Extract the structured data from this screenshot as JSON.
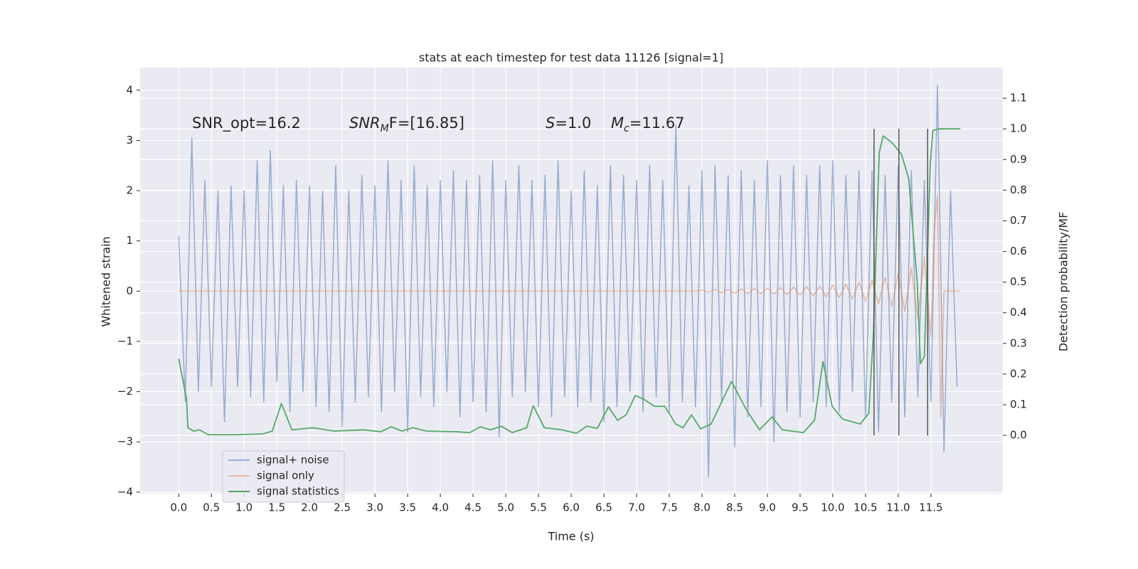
{
  "chart_data": {
    "type": "line",
    "title": "stats at each timestep for test data 11126 [signal=1]",
    "x_label": "Time (s)",
    "y_label": "Whitened strain",
    "y2_label": "Detection probability/MF",
    "background": "#eaeaf2",
    "grid": true,
    "legend": "lower left",
    "xlim": [
      -0.59,
      12.6
    ],
    "ylim": [
      -4.03,
      4.45
    ],
    "y2lim": [
      -0.19,
      1.2
    ],
    "xticks": [
      {
        "value": 0,
        "label": "0.0"
      },
      {
        "value": 0.5,
        "label": "0.5"
      },
      {
        "value": 1,
        "label": "1.0"
      },
      {
        "value": 1.5,
        "label": "1.5"
      },
      {
        "value": 2,
        "label": "2.0"
      },
      {
        "value": 2.5,
        "label": "2.5"
      },
      {
        "value": 3,
        "label": "3.0"
      },
      {
        "value": 3.5,
        "label": "3.5"
      },
      {
        "value": 4,
        "label": "4.0"
      },
      {
        "value": 4.5,
        "label": "4.5"
      },
      {
        "value": 5,
        "label": "5.0"
      },
      {
        "value": 5.5,
        "label": "5.5"
      },
      {
        "value": 6,
        "label": "6.0"
      },
      {
        "value": 6.5,
        "label": "6.5"
      },
      {
        "value": 7,
        "label": "7.0"
      },
      {
        "value": 7.5,
        "label": "7.5"
      },
      {
        "value": 8,
        "label": "8.0"
      },
      {
        "value": 8.5,
        "label": "8.5"
      },
      {
        "value": 9,
        "label": "9.0"
      },
      {
        "value": 9.5,
        "label": "9.5"
      },
      {
        "value": 10,
        "label": "10.0"
      },
      {
        "value": 10.5,
        "label": "10.5"
      },
      {
        "value": 11,
        "label": "11.0"
      },
      {
        "value": 11.5,
        "label": "11.5"
      }
    ],
    "yticks": [
      {
        "value": -4,
        "label": "−4"
      },
      {
        "value": -3,
        "label": "−3"
      },
      {
        "value": -2,
        "label": "−2"
      },
      {
        "value": -1,
        "label": "−1"
      },
      0,
      1,
      2,
      3,
      4
    ],
    "y2ticks": [
      {
        "value": 0,
        "label": "0.0"
      },
      {
        "value": 0.1,
        "label": "0.1"
      },
      {
        "value": 0.2,
        "label": "0.2"
      },
      {
        "value": 0.3,
        "label": "0.3"
      },
      {
        "value": 0.4,
        "label": "0.4"
      },
      {
        "value": 0.5,
        "label": "0.5"
      },
      {
        "value": 0.6,
        "label": "0.6"
      },
      {
        "value": 0.7,
        "label": "0.7"
      },
      {
        "value": 0.8,
        "label": "0.8"
      },
      {
        "value": 0.9,
        "label": "0.9"
      },
      {
        "value": 1,
        "label": "1.0"
      },
      {
        "value": 1.1,
        "label": "1.1"
      }
    ],
    "annotations": [
      {
        "parts": [
          {
            "text": "SNR_opt=16.2",
            "style": "normal"
          }
        ]
      },
      {
        "parts": [
          {
            "text": "SNR",
            "style": "italic"
          },
          {
            "text": "M",
            "style": "italic-sub"
          },
          {
            "text": "F=[16.85]",
            "style": "mixed"
          }
        ]
      },
      {
        "parts": [
          {
            "text": "S",
            "style": "italic"
          },
          {
            "text": "=1.0",
            "style": "normal"
          }
        ]
      },
      {
        "parts": [
          {
            "text": "M",
            "style": "italic"
          },
          {
            "text": "c",
            "style": "italic-sub"
          },
          {
            "text": "=11.67",
            "style": "normal"
          }
        ]
      }
    ],
    "vlines": {
      "x": [
        10.63,
        11.01,
        11.45
      ],
      "ymin": 0,
      "ymax": 1,
      "axis": "y2",
      "color": "#555555"
    },
    "series": [
      {
        "name": "signal+ noise",
        "color": "#4c72b0",
        "opacity": 0.5,
        "x": [
          0,
          0.1,
          0.2,
          0.3,
          0.4,
          0.5,
          0.6,
          0.7,
          0.8,
          0.9,
          1,
          1.1,
          1.2,
          1.3,
          1.4,
          1.5,
          1.6,
          1.7,
          1.8,
          1.9,
          2,
          2.1,
          2.2,
          2.3,
          2.4,
          2.5,
          2.6,
          2.7,
          2.8,
          2.9,
          3,
          3.1,
          3.2,
          3.3,
          3.4,
          3.5,
          3.6,
          3.7,
          3.8,
          3.9,
          4,
          4.1,
          4.2,
          4.3,
          4.4,
          4.5,
          4.6,
          4.7,
          4.8,
          4.9,
          5,
          5.1,
          5.2,
          5.3,
          5.4,
          5.5,
          5.6,
          5.7,
          5.8,
          5.9,
          6,
          6.1,
          6.2,
          6.3,
          6.4,
          6.5,
          6.6,
          6.7,
          6.8,
          6.9,
          7,
          7.1,
          7.2,
          7.3,
          7.4,
          7.5,
          7.6,
          7.7,
          7.8,
          7.9,
          8,
          8.1,
          8.2,
          8.3,
          8.4,
          8.5,
          8.6,
          8.7,
          8.8,
          8.9,
          9,
          9.1,
          9.2,
          9.3,
          9.4,
          9.5,
          9.6,
          9.7,
          9.8,
          9.9,
          10,
          10.1,
          10.2,
          10.3,
          10.4,
          10.5,
          10.6,
          10.7,
          10.8,
          10.9,
          11,
          11.1,
          11.2,
          11.3,
          11.4,
          11.5,
          11.6,
          11.7,
          11.8,
          11.9
        ],
        "values": [
          1.1,
          -2.2,
          3.05,
          -2.0,
          2.2,
          -1.9,
          2.0,
          -2.6,
          2.1,
          -1.9,
          2.0,
          -2.1,
          2.6,
          -2.2,
          2.8,
          -1.8,
          2.1,
          -2.4,
          2.2,
          -2.0,
          2.1,
          -2.3,
          2.0,
          -2.4,
          2.5,
          -2.7,
          2.0,
          -2.2,
          2.3,
          -2.1,
          2.1,
          -2.4,
          2.6,
          -2.0,
          2.2,
          -2.8,
          2.5,
          -2.1,
          2.1,
          -2.3,
          2.2,
          -2.0,
          2.4,
          -2.5,
          2.2,
          -2.2,
          2.3,
          -2.4,
          2.6,
          -2.9,
          2.2,
          -2.1,
          2.5,
          -2.0,
          2.2,
          -2.3,
          2.3,
          -2.5,
          2.6,
          -2.1,
          2.0,
          -2.3,
          2.4,
          -2.2,
          2.1,
          -2.6,
          2.5,
          -2.3,
          2.3,
          -2.0,
          2.2,
          -2.4,
          2.5,
          -2.1,
          2.2,
          -2.4,
          3.3,
          -2.2,
          2.1,
          -2.3,
          2.4,
          -3.7,
          2.5,
          -2.2,
          2.3,
          -3.1,
          2.4,
          -2.5,
          2.2,
          -2.3,
          2.6,
          -3.0,
          2.3,
          -2.4,
          2.5,
          -2.5,
          2.3,
          -2.2,
          2.5,
          -2.3,
          2.6,
          -2.4,
          2.3,
          -2.0,
          2.4,
          -2.5,
          2.4,
          -2.8,
          2.3,
          -2.2,
          2.5,
          -2.5,
          2.4,
          -2.1,
          2.2,
          -2.2,
          4.1,
          -3.2,
          2.0,
          -1.9
        ]
      },
      {
        "name": "signal only",
        "color": "#dd8452",
        "opacity": 0.5,
        "x": [
          0,
          7.9,
          8,
          8.1,
          8.2,
          8.3,
          8.4,
          8.5,
          8.6,
          8.7,
          8.8,
          8.9,
          9,
          9.1,
          9.2,
          9.3,
          9.4,
          9.5,
          9.6,
          9.7,
          9.8,
          9.9,
          10,
          10.1,
          10.2,
          10.3,
          10.4,
          10.5,
          10.6,
          10.7,
          10.8,
          10.9,
          11,
          11.1,
          11.2,
          11.3,
          11.4,
          11.5,
          11.55,
          11.6,
          11.65,
          11.7,
          11.95
        ],
        "values": [
          0,
          0,
          0.02,
          -0.02,
          0.03,
          -0.03,
          0.03,
          -0.04,
          0.04,
          -0.05,
          0.05,
          -0.05,
          0.06,
          -0.06,
          0.07,
          -0.07,
          0.08,
          -0.08,
          0.09,
          -0.1,
          0.1,
          -0.11,
          0.12,
          -0.13,
          0.14,
          -0.16,
          0.18,
          -0.2,
          0.22,
          -0.25,
          0.28,
          -0.31,
          0.35,
          -0.4,
          0.46,
          -0.55,
          0.68,
          -0.9,
          1.2,
          1.9,
          -2.5,
          0,
          0
        ]
      },
      {
        "name": "signal statistics",
        "color": "#55a868",
        "opacity": 1,
        "axis": "y2",
        "x": [
          0,
          0.12,
          0.14,
          0.23,
          0.32,
          0.45,
          0.86,
          1.29,
          1.43,
          1.57,
          1.73,
          2.05,
          2.38,
          2.82,
          3.09,
          3.25,
          3.41,
          3.58,
          3.79,
          4.23,
          4.45,
          4.61,
          4.77,
          4.93,
          5.1,
          5.32,
          5.42,
          5.59,
          5.86,
          6.08,
          6.24,
          6.4,
          6.57,
          6.71,
          6.84,
          6.98,
          7.11,
          7.27,
          7.43,
          7.6,
          7.71,
          7.84,
          7.98,
          8.14,
          8.45,
          8.68,
          8.88,
          9.07,
          9.23,
          9.55,
          9.72,
          9.85,
          9.99,
          10.15,
          10.42,
          10.55,
          10.62,
          10.71,
          10.77,
          10.91,
          11.05,
          11.16,
          11.29,
          11.34,
          11.4,
          11.49,
          11.53,
          11.62,
          11.95
        ],
        "values": [
          0.25,
          0.12,
          0.025,
          0.014,
          0.018,
          0.002,
          0.002,
          0.005,
          0.014,
          0.104,
          0.018,
          0.025,
          0.014,
          0.018,
          0.012,
          0.028,
          0.014,
          0.025,
          0.014,
          0.012,
          0.009,
          0.028,
          0.018,
          0.03,
          0.009,
          0.025,
          0.097,
          0.025,
          0.018,
          0.007,
          0.03,
          0.023,
          0.093,
          0.049,
          0.067,
          0.13,
          0.118,
          0.095,
          0.095,
          0.037,
          0.025,
          0.067,
          0.021,
          0.037,
          0.176,
          0.083,
          0.018,
          0.06,
          0.018,
          0.009,
          0.049,
          0.241,
          0.095,
          0.053,
          0.037,
          0.072,
          0.327,
          0.923,
          0.977,
          0.954,
          0.917,
          0.838,
          0.501,
          0.234,
          0.258,
          0.884,
          0.995,
          1.0,
          1.0
        ]
      }
    ]
  }
}
